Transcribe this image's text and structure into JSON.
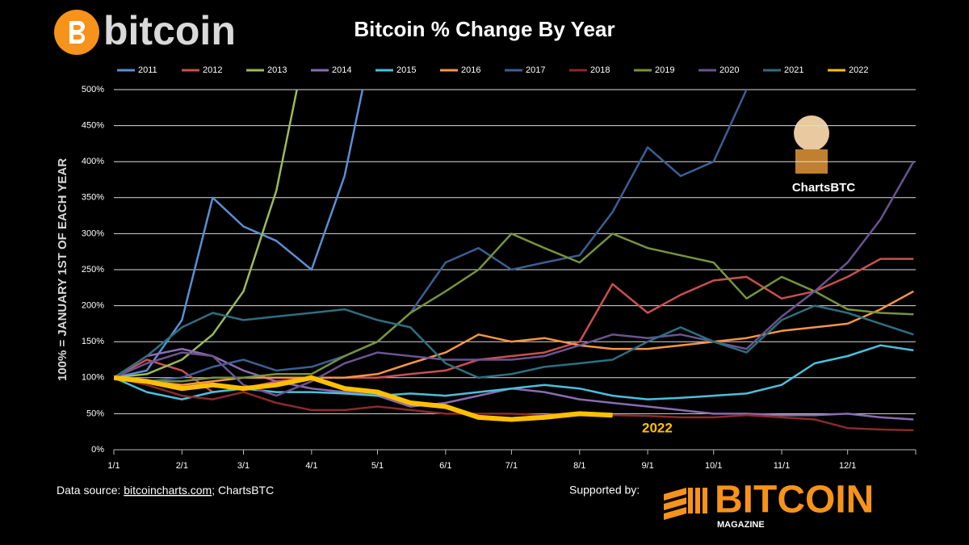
{
  "logo": "bitcoin",
  "footer": {
    "source_label": "Data source:",
    "source_link": "bitcoincharts.com",
    "source_rest": "; ChartsBTC",
    "supported_by": "Supported by:",
    "sponsor": "BITCOIN",
    "sponsor_sub": "MAGAZINE"
  },
  "mascot_label": "ChartsBTC",
  "chart_data": {
    "type": "line",
    "title": "Bitcoin % Change By Year",
    "y_label": "100% = JANUARY 1ST OF EACH YEAR",
    "annotation": "2022",
    "x": [
      0,
      15,
      31,
      45,
      59,
      74,
      90,
      105,
      120,
      135,
      151,
      166,
      181,
      196,
      212,
      227,
      243,
      258,
      273,
      288,
      304,
      319,
      334,
      349,
      364
    ],
    "xlim": [
      0,
      365
    ],
    "xticks": [
      {
        "value": 0,
        "label": "1/1"
      },
      {
        "value": 31,
        "label": "2/1"
      },
      {
        "value": 59,
        "label": "3/1"
      },
      {
        "value": 90,
        "label": "4/1"
      },
      {
        "value": 120,
        "label": "5/1"
      },
      {
        "value": 151,
        "label": "6/1"
      },
      {
        "value": 181,
        "label": "7/1"
      },
      {
        "value": 212,
        "label": "8/1"
      },
      {
        "value": 243,
        "label": "9/1"
      },
      {
        "value": 273,
        "label": "10/1"
      },
      {
        "value": 304,
        "label": "11/1"
      },
      {
        "value": 334,
        "label": "12/1"
      }
    ],
    "ylim": [
      0,
      500
    ],
    "yticks": [
      {
        "value": 0,
        "label": "0%"
      },
      {
        "value": 50,
        "label": "50%"
      },
      {
        "value": 100,
        "label": "100%"
      },
      {
        "value": 150,
        "label": "150%"
      },
      {
        "value": 200,
        "label": "200%"
      },
      {
        "value": 250,
        "label": "250%"
      },
      {
        "value": 300,
        "label": "300%"
      },
      {
        "value": 350,
        "label": "350%"
      },
      {
        "value": 400,
        "label": "400%"
      },
      {
        "value": 450,
        "label": "450%"
      },
      {
        "value": 500,
        "label": "500%"
      }
    ],
    "grid": true,
    "series": [
      {
        "name": "2011",
        "color": "#5b8fd4",
        "values": [
          100,
          110,
          180,
          350,
          310,
          290,
          250,
          380,
          600,
          null,
          null,
          null,
          null,
          null,
          null,
          null,
          null,
          null,
          null,
          null,
          null,
          null,
          null,
          null,
          null
        ]
      },
      {
        "name": "2012",
        "color": "#c9504f",
        "values": [
          100,
          125,
          110,
          80,
          85,
          95,
          100,
          100,
          100,
          105,
          110,
          125,
          130,
          135,
          150,
          230,
          190,
          215,
          235,
          240,
          210,
          220,
          240,
          265,
          265
        ]
      },
      {
        "name": "2013",
        "color": "#9bbb59",
        "values": [
          100,
          105,
          125,
          160,
          220,
          360,
          600,
          null,
          null,
          null,
          null,
          null,
          null,
          null,
          null,
          null,
          null,
          null,
          null,
          null,
          null,
          null,
          null,
          null,
          null
        ]
      },
      {
        "name": "2014",
        "color": "#8a6bb0",
        "values": [
          100,
          130,
          140,
          130,
          110,
          95,
          85,
          80,
          75,
          60,
          65,
          75,
          85,
          80,
          70,
          65,
          60,
          55,
          50,
          50,
          48,
          48,
          50,
          45,
          42
        ]
      },
      {
        "name": "2015",
        "color": "#4bc0dc",
        "values": [
          100,
          80,
          70,
          80,
          85,
          80,
          80,
          78,
          75,
          78,
          75,
          80,
          85,
          90,
          85,
          75,
          70,
          72,
          75,
          78,
          90,
          120,
          130,
          145,
          138
        ]
      },
      {
        "name": "2016",
        "color": "#f79646",
        "values": [
          100,
          95,
          90,
          95,
          100,
          100,
          100,
          100,
          105,
          120,
          135,
          160,
          150,
          155,
          145,
          140,
          140,
          145,
          150,
          155,
          165,
          170,
          175,
          195,
          220
        ]
      },
      {
        "name": "2017",
        "color": "#3a5f94",
        "values": [
          100,
          95,
          100,
          115,
          125,
          110,
          115,
          130,
          150,
          190,
          260,
          280,
          250,
          260,
          270,
          330,
          420,
          380,
          400,
          500,
          600,
          null,
          null,
          null,
          null
        ]
      },
      {
        "name": "2018",
        "color": "#8b2a2a",
        "values": [
          100,
          90,
          75,
          70,
          80,
          65,
          55,
          55,
          60,
          55,
          50,
          50,
          50,
          48,
          52,
          48,
          47,
          45,
          45,
          48,
          45,
          42,
          30,
          28,
          27
        ]
      },
      {
        "name": "2019",
        "color": "#77933c",
        "values": [
          100,
          95,
          95,
          100,
          100,
          105,
          105,
          130,
          150,
          190,
          220,
          250,
          300,
          280,
          260,
          300,
          280,
          270,
          260,
          210,
          240,
          220,
          195,
          190,
          188
        ]
      },
      {
        "name": "2020",
        "color": "#6a5490",
        "values": [
          100,
          120,
          135,
          130,
          90,
          75,
          95,
          120,
          135,
          130,
          125,
          125,
          125,
          130,
          145,
          160,
          155,
          160,
          150,
          140,
          185,
          220,
          260,
          320,
          400
        ]
      },
      {
        "name": "2021",
        "color": "#2e6f80",
        "values": [
          100,
          130,
          170,
          190,
          180,
          185,
          190,
          195,
          180,
          170,
          120,
          100,
          105,
          115,
          120,
          125,
          150,
          170,
          150,
          135,
          180,
          200,
          190,
          175,
          160
        ]
      },
      {
        "name": "2022",
        "color": "#ffc000",
        "values": [
          100,
          95,
          85,
          90,
          85,
          90,
          100,
          85,
          80,
          65,
          60,
          45,
          42,
          45,
          50,
          48,
          null,
          null,
          null,
          null,
          null,
          null,
          null,
          null,
          null
        ]
      }
    ]
  }
}
